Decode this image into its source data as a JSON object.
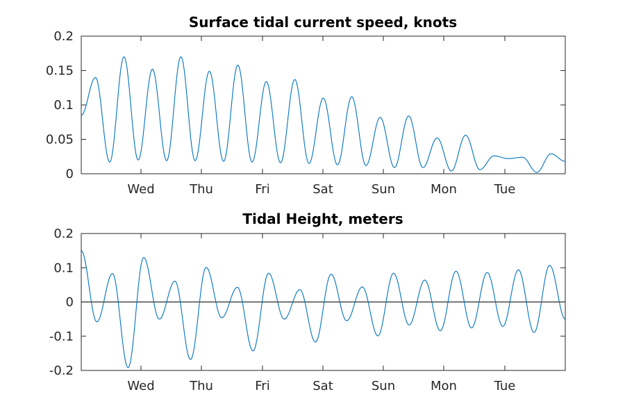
{
  "chart_data": [
    {
      "type": "line",
      "title": "Surface tidal current speed, knots",
      "xlabel": "",
      "ylabel": "",
      "x_ticks": [
        "Wed",
        "Thu",
        "Fri",
        "Sat",
        "Sun",
        "Mon",
        "Tue"
      ],
      "y_ticks": [
        "0",
        "0.05",
        "0.1",
        "0.15",
        "0.2"
      ],
      "ylim": [
        0,
        0.2
      ],
      "grid": false,
      "line_color": "#0072BD",
      "series": [
        {
          "extrema": [
            0.085,
            0.14,
            0.017,
            0.17,
            0.02,
            0.152,
            0.019,
            0.17,
            0.019,
            0.149,
            0.018,
            0.158,
            0.017,
            0.134,
            0.016,
            0.137,
            0.015,
            0.11,
            0.013,
            0.112,
            0.012,
            0.082,
            0.009,
            0.084,
            0.009,
            0.052,
            0.004,
            0.056,
            0.006,
            0.026,
            0.022,
            0.024,
            0.002,
            0.029,
            0.018
          ]
        }
      ]
    },
    {
      "type": "line",
      "title": "Tidal Height, meters",
      "xlabel": "",
      "ylabel": "",
      "x_ticks": [
        "Wed",
        "Thu",
        "Fri",
        "Sat",
        "Sun",
        "Mon",
        "Tue"
      ],
      "y_ticks": [
        "-0.2",
        "-0.1",
        "0",
        "0.1",
        "0.2"
      ],
      "ylim": [
        -0.2,
        0.2
      ],
      "grid": false,
      "zero_line": true,
      "line_color": "#0072BD",
      "series": [
        {
          "extrema": [
            0.15,
            -0.058,
            0.083,
            -0.192,
            0.13,
            -0.05,
            0.061,
            -0.168,
            0.101,
            -0.046,
            0.043,
            -0.143,
            0.084,
            -0.05,
            0.036,
            -0.117,
            0.081,
            -0.055,
            0.044,
            -0.099,
            0.084,
            -0.067,
            0.064,
            -0.084,
            0.09,
            -0.076,
            0.086,
            -0.071,
            0.094,
            -0.089,
            0.107,
            -0.05
          ]
        }
      ]
    }
  ]
}
